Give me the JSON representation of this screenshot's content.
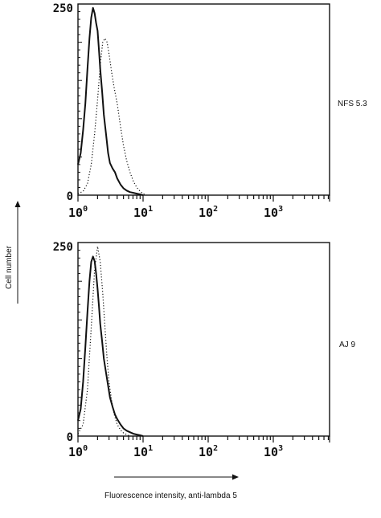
{
  "chart_data": [
    {
      "type": "line",
      "panel_label": "NFS 5.3",
      "ylim": [
        0,
        250
      ],
      "x_scale": "log",
      "xlim": [
        1,
        10000
      ],
      "y_ticks": [
        "250",
        "0"
      ],
      "x_ticks": [
        {
          "base": "10",
          "exp": "0"
        },
        {
          "base": "10",
          "exp": "1"
        },
        {
          "base": "10",
          "exp": "2"
        },
        {
          "base": "10",
          "exp": "3"
        }
      ],
      "series": [
        {
          "style": "solid",
          "x": [
            1.0,
            1.1,
            1.2,
            1.3,
            1.4,
            1.5,
            1.6,
            1.7,
            1.8,
            1.9,
            2.0,
            2.1,
            2.2,
            2.35,
            2.5,
            2.7,
            2.9,
            3.1,
            3.4,
            3.7,
            4.0,
            4.5,
            5.0,
            5.6,
            6.3,
            7.1,
            8.0,
            9.0,
            10.0
          ],
          "values": [
            40,
            55,
            85,
            120,
            165,
            205,
            232,
            245,
            238,
            225,
            215,
            190,
            165,
            135,
            105,
            80,
            55,
            42,
            35,
            30,
            22,
            14,
            9,
            6,
            4,
            3,
            2,
            1,
            0
          ]
        },
        {
          "style": "dotted",
          "x": [
            1.0,
            1.2,
            1.4,
            1.6,
            1.8,
            2.0,
            2.2,
            2.4,
            2.6,
            2.8,
            3.0,
            3.3,
            3.6,
            4.0,
            4.5,
            5.0,
            5.6,
            6.3,
            7.1,
            8.0,
            9.0,
            10.0,
            11.2
          ],
          "values": [
            2,
            5,
            15,
            40,
            80,
            125,
            170,
            200,
            205,
            200,
            185,
            160,
            140,
            120,
            90,
            65,
            45,
            30,
            18,
            10,
            5,
            2,
            0
          ]
        }
      ]
    },
    {
      "type": "line",
      "panel_label": "AJ 9",
      "ylim": [
        0,
        250
      ],
      "x_scale": "log",
      "xlim": [
        1,
        10000
      ],
      "y_ticks": [
        "250",
        "0"
      ],
      "x_ticks": [
        {
          "base": "10",
          "exp": "0"
        },
        {
          "base": "10",
          "exp": "1"
        },
        {
          "base": "10",
          "exp": "2"
        },
        {
          "base": "10",
          "exp": "3"
        }
      ],
      "series": [
        {
          "style": "solid",
          "x": [
            1.0,
            1.1,
            1.2,
            1.3,
            1.4,
            1.5,
            1.6,
            1.7,
            1.8,
            1.9,
            2.0,
            2.1,
            2.2,
            2.35,
            2.5,
            2.7,
            2.9,
            3.1,
            3.4,
            3.7,
            4.0,
            4.5,
            5.0,
            5.6,
            6.3,
            7.1,
            8.0,
            9.0,
            10.0
          ],
          "values": [
            20,
            35,
            70,
            115,
            160,
            200,
            225,
            232,
            226,
            210,
            190,
            168,
            145,
            122,
            100,
            82,
            65,
            50,
            38,
            28,
            22,
            15,
            10,
            7,
            5,
            3,
            2,
            1,
            0
          ]
        },
        {
          "style": "dotted",
          "x": [
            1.0,
            1.2,
            1.4,
            1.6,
            1.8,
            2.0,
            2.2,
            2.4,
            2.6,
            2.8,
            3.0,
            3.3,
            3.6,
            4.0,
            4.5,
            5.0,
            5.6,
            6.3
          ],
          "values": [
            3,
            15,
            60,
            140,
            215,
            245,
            225,
            185,
            140,
            100,
            70,
            45,
            28,
            15,
            8,
            4,
            2,
            0
          ]
        }
      ]
    }
  ],
  "ylabel": "Cell number",
  "xlabel": "Fluorescence intensity, anti-lambda 5",
  "colors": {
    "ink": "#111111",
    "background": "#ffffff"
  }
}
